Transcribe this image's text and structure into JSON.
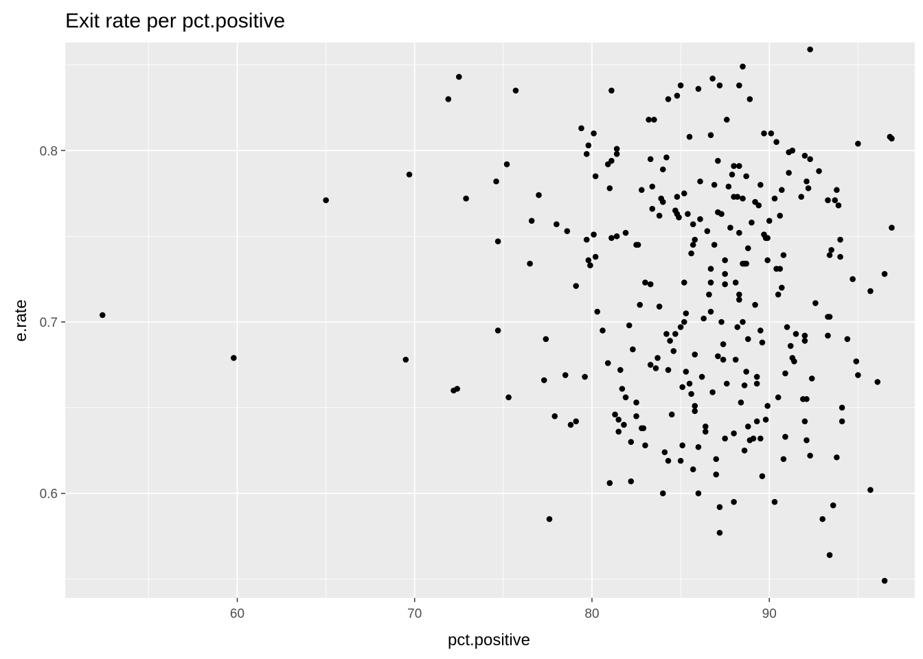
{
  "chart_data": {
    "type": "scatter",
    "title": "Exit rate per pct.positive",
    "xlabel": "pct.positive",
    "ylabel": "e.rate",
    "xlim": [
      50.3,
      98.2
    ],
    "ylim": [
      0.539,
      0.863
    ],
    "x_ticks": [
      60,
      70,
      80,
      90
    ],
    "y_ticks": [
      0.6,
      0.7,
      0.8
    ],
    "x_tick_labels": [
      "60",
      "70",
      "80",
      "90"
    ],
    "y_tick_labels": [
      "0.6",
      "0.7",
      "0.8"
    ],
    "grid": true,
    "legend": "none",
    "colors": {
      "panel": "#ebebeb",
      "grid": "#ffffff",
      "point": "#000000"
    },
    "points": [
      [
        52.4,
        0.704
      ],
      [
        59.8,
        0.679
      ],
      [
        65.0,
        0.771
      ],
      [
        69.5,
        0.678
      ],
      [
        69.7,
        0.786
      ],
      [
        71.9,
        0.83
      ],
      [
        72.2,
        0.66
      ],
      [
        72.4,
        0.661
      ],
      [
        72.5,
        0.843
      ],
      [
        72.9,
        0.772
      ],
      [
        74.6,
        0.782
      ],
      [
        74.7,
        0.747
      ],
      [
        74.7,
        0.695
      ],
      [
        75.2,
        0.792
      ],
      [
        75.3,
        0.656
      ],
      [
        75.7,
        0.835
      ],
      [
        76.5,
        0.734
      ],
      [
        76.6,
        0.759
      ],
      [
        77.0,
        0.774
      ],
      [
        77.3,
        0.666
      ],
      [
        77.4,
        0.69
      ],
      [
        77.6,
        0.585
      ],
      [
        77.9,
        0.645
      ],
      [
        78.0,
        0.757
      ],
      [
        78.5,
        0.669
      ],
      [
        78.6,
        0.753
      ],
      [
        78.8,
        0.64
      ],
      [
        79.1,
        0.642
      ],
      [
        79.1,
        0.721
      ],
      [
        79.4,
        0.813
      ],
      [
        79.6,
        0.668
      ],
      [
        79.7,
        0.748
      ],
      [
        79.7,
        0.798
      ],
      [
        79.8,
        0.803
      ],
      [
        79.8,
        0.736
      ],
      [
        79.9,
        0.733
      ],
      [
        80.1,
        0.751
      ],
      [
        80.1,
        0.81
      ],
      [
        80.2,
        0.785
      ],
      [
        80.2,
        0.738
      ],
      [
        80.3,
        0.706
      ],
      [
        80.6,
        0.695
      ],
      [
        80.9,
        0.676
      ],
      [
        80.9,
        0.792
      ],
      [
        81.0,
        0.778
      ],
      [
        81.0,
        0.606
      ],
      [
        81.1,
        0.794
      ],
      [
        81.1,
        0.749
      ],
      [
        81.1,
        0.835
      ],
      [
        81.3,
        0.646
      ],
      [
        81.4,
        0.798
      ],
      [
        81.4,
        0.801
      ],
      [
        81.4,
        0.75
      ],
      [
        81.5,
        0.636
      ],
      [
        81.5,
        0.643
      ],
      [
        81.6,
        0.672
      ],
      [
        81.7,
        0.661
      ],
      [
        81.8,
        0.64
      ],
      [
        81.9,
        0.656
      ],
      [
        81.9,
        0.752
      ],
      [
        82.1,
        0.698
      ],
      [
        82.2,
        0.63
      ],
      [
        82.2,
        0.607
      ],
      [
        82.3,
        0.684
      ],
      [
        82.5,
        0.745
      ],
      [
        82.5,
        0.653
      ],
      [
        82.5,
        0.645
      ],
      [
        82.6,
        0.745
      ],
      [
        82.7,
        0.71
      ],
      [
        82.8,
        0.638
      ],
      [
        82.8,
        0.777
      ],
      [
        82.9,
        0.638
      ],
      [
        83.0,
        0.723
      ],
      [
        83.0,
        0.628
      ],
      [
        83.2,
        0.818
      ],
      [
        83.3,
        0.795
      ],
      [
        83.3,
        0.722
      ],
      [
        83.3,
        0.675
      ],
      [
        83.4,
        0.766
      ],
      [
        83.4,
        0.779
      ],
      [
        83.5,
        0.818
      ],
      [
        83.6,
        0.673
      ],
      [
        83.7,
        0.679
      ],
      [
        83.8,
        0.762
      ],
      [
        83.8,
        0.709
      ],
      [
        83.9,
        0.772
      ],
      [
        84.0,
        0.77
      ],
      [
        84.0,
        0.789
      ],
      [
        84.0,
        0.6
      ],
      [
        84.1,
        0.624
      ],
      [
        84.2,
        0.693
      ],
      [
        84.2,
        0.796
      ],
      [
        84.3,
        0.83
      ],
      [
        84.3,
        0.619
      ],
      [
        84.3,
        0.672
      ],
      [
        84.4,
        0.689
      ],
      [
        84.5,
        0.646
      ],
      [
        84.6,
        0.683
      ],
      [
        84.7,
        0.765
      ],
      [
        84.7,
        0.693
      ],
      [
        84.8,
        0.832
      ],
      [
        84.8,
        0.763
      ],
      [
        84.8,
        0.773
      ],
      [
        84.9,
        0.761
      ],
      [
        85.0,
        0.619
      ],
      [
        85.0,
        0.838
      ],
      [
        85.0,
        0.697
      ],
      [
        85.1,
        0.662
      ],
      [
        85.1,
        0.628
      ],
      [
        85.2,
        0.775
      ],
      [
        85.2,
        0.7
      ],
      [
        85.2,
        0.723
      ],
      [
        85.3,
        0.705
      ],
      [
        85.3,
        0.671
      ],
      [
        85.4,
        0.763
      ],
      [
        85.5,
        0.664
      ],
      [
        85.5,
        0.808
      ],
      [
        85.6,
        0.658
      ],
      [
        85.6,
        0.74
      ],
      [
        85.7,
        0.614
      ],
      [
        85.7,
        0.745
      ],
      [
        85.7,
        0.757
      ],
      [
        85.8,
        0.748
      ],
      [
        85.8,
        0.651
      ],
      [
        85.8,
        0.681
      ],
      [
        85.8,
        0.648
      ],
      [
        86.0,
        0.627
      ],
      [
        86.0,
        0.6
      ],
      [
        86.0,
        0.836
      ],
      [
        86.1,
        0.782
      ],
      [
        86.1,
        0.76
      ],
      [
        86.2,
        0.668
      ],
      [
        86.3,
        0.702
      ],
      [
        86.4,
        0.639
      ],
      [
        86.4,
        0.636
      ],
      [
        86.5,
        0.753
      ],
      [
        86.6,
        0.716
      ],
      [
        86.7,
        0.723
      ],
      [
        86.7,
        0.809
      ],
      [
        86.7,
        0.731
      ],
      [
        86.7,
        0.706
      ],
      [
        86.8,
        0.842
      ],
      [
        86.8,
        0.659
      ],
      [
        86.9,
        0.78
      ],
      [
        86.9,
        0.745
      ],
      [
        87.0,
        0.611
      ],
      [
        87.0,
        0.62
      ],
      [
        87.1,
        0.68
      ],
      [
        87.1,
        0.794
      ],
      [
        87.1,
        0.764
      ],
      [
        87.2,
        0.838
      ],
      [
        87.2,
        0.577
      ],
      [
        87.2,
        0.592
      ],
      [
        87.3,
        0.763
      ],
      [
        87.3,
        0.7
      ],
      [
        87.4,
        0.678
      ],
      [
        87.4,
        0.687
      ],
      [
        87.5,
        0.632
      ],
      [
        87.5,
        0.728
      ],
      [
        87.5,
        0.736
      ],
      [
        87.5,
        0.722
      ],
      [
        87.6,
        0.818
      ],
      [
        87.6,
        0.664
      ],
      [
        87.7,
        0.779
      ],
      [
        87.8,
        0.755
      ],
      [
        87.9,
        0.786
      ],
      [
        88.0,
        0.595
      ],
      [
        88.0,
        0.635
      ],
      [
        88.0,
        0.773
      ],
      [
        88.0,
        0.791
      ],
      [
        88.1,
        0.678
      ],
      [
        88.1,
        0.723
      ],
      [
        88.2,
        0.697
      ],
      [
        88.2,
        0.773
      ],
      [
        88.3,
        0.713
      ],
      [
        88.3,
        0.716
      ],
      [
        88.3,
        0.752
      ],
      [
        88.3,
        0.838
      ],
      [
        88.3,
        0.791
      ],
      [
        88.4,
        0.653
      ],
      [
        88.5,
        0.849
      ],
      [
        88.5,
        0.772
      ],
      [
        88.5,
        0.7
      ],
      [
        88.5,
        0.734
      ],
      [
        88.6,
        0.625
      ],
      [
        88.6,
        0.734
      ],
      [
        88.6,
        0.663
      ],
      [
        88.7,
        0.671
      ],
      [
        88.7,
        0.785
      ],
      [
        88.7,
        0.734
      ],
      [
        88.8,
        0.69
      ],
      [
        88.8,
        0.743
      ],
      [
        88.8,
        0.639
      ],
      [
        88.9,
        0.631
      ],
      [
        88.9,
        0.83
      ],
      [
        89.0,
        0.758
      ],
      [
        89.1,
        0.632
      ],
      [
        89.2,
        0.71
      ],
      [
        89.2,
        0.77
      ],
      [
        89.3,
        0.668
      ],
      [
        89.3,
        0.664
      ],
      [
        89.3,
        0.642
      ],
      [
        89.4,
        0.768
      ],
      [
        89.5,
        0.632
      ],
      [
        89.5,
        0.695
      ],
      [
        89.5,
        0.78
      ],
      [
        89.6,
        0.688
      ],
      [
        89.6,
        0.61
      ],
      [
        89.7,
        0.81
      ],
      [
        89.7,
        0.751
      ],
      [
        89.8,
        0.749
      ],
      [
        89.8,
        0.643
      ],
      [
        89.9,
        0.651
      ],
      [
        89.9,
        0.736
      ],
      [
        89.9,
        0.749
      ],
      [
        90.0,
        0.759
      ],
      [
        90.1,
        0.81
      ],
      [
        90.3,
        0.772
      ],
      [
        90.3,
        0.595
      ],
      [
        90.4,
        0.805
      ],
      [
        90.4,
        0.731
      ],
      [
        90.5,
        0.716
      ],
      [
        90.5,
        0.656
      ],
      [
        90.6,
        0.762
      ],
      [
        90.6,
        0.731
      ],
      [
        90.7,
        0.777
      ],
      [
        90.7,
        0.72
      ],
      [
        90.8,
        0.739
      ],
      [
        90.8,
        0.62
      ],
      [
        90.9,
        0.67
      ],
      [
        90.9,
        0.633
      ],
      [
        91.0,
        0.697
      ],
      [
        91.1,
        0.787
      ],
      [
        91.1,
        0.799
      ],
      [
        91.2,
        0.686
      ],
      [
        91.3,
        0.8
      ],
      [
        91.3,
        0.679
      ],
      [
        91.4,
        0.677
      ],
      [
        91.5,
        0.693
      ],
      [
        91.8,
        0.773
      ],
      [
        91.9,
        0.655
      ],
      [
        92.0,
        0.797
      ],
      [
        92.0,
        0.689
      ],
      [
        92.0,
        0.692
      ],
      [
        92.0,
        0.642
      ],
      [
        92.1,
        0.655
      ],
      [
        92.1,
        0.631
      ],
      [
        92.1,
        0.782
      ],
      [
        92.2,
        0.778
      ],
      [
        92.3,
        0.622
      ],
      [
        92.3,
        0.795
      ],
      [
        92.3,
        0.859
      ],
      [
        92.4,
        0.667
      ],
      [
        92.6,
        0.711
      ],
      [
        92.8,
        0.788
      ],
      [
        93.0,
        0.585
      ],
      [
        93.3,
        0.703
      ],
      [
        93.3,
        0.771
      ],
      [
        93.3,
        0.692
      ],
      [
        93.4,
        0.703
      ],
      [
        93.4,
        0.739
      ],
      [
        93.4,
        0.564
      ],
      [
        93.5,
        0.742
      ],
      [
        93.6,
        0.593
      ],
      [
        93.7,
        0.771
      ],
      [
        93.8,
        0.777
      ],
      [
        93.8,
        0.621
      ],
      [
        93.9,
        0.768
      ],
      [
        94.0,
        0.738
      ],
      [
        94.0,
        0.748
      ],
      [
        94.1,
        0.65
      ],
      [
        94.1,
        0.642
      ],
      [
        94.4,
        0.69
      ],
      [
        94.7,
        0.725
      ],
      [
        94.9,
        0.677
      ],
      [
        95.0,
        0.669
      ],
      [
        95.0,
        0.804
      ],
      [
        95.7,
        0.602
      ],
      [
        95.7,
        0.718
      ],
      [
        96.1,
        0.665
      ],
      [
        96.5,
        0.549
      ],
      [
        96.5,
        0.728
      ],
      [
        96.8,
        0.808
      ],
      [
        96.9,
        0.807
      ],
      [
        96.9,
        0.755
      ]
    ]
  }
}
